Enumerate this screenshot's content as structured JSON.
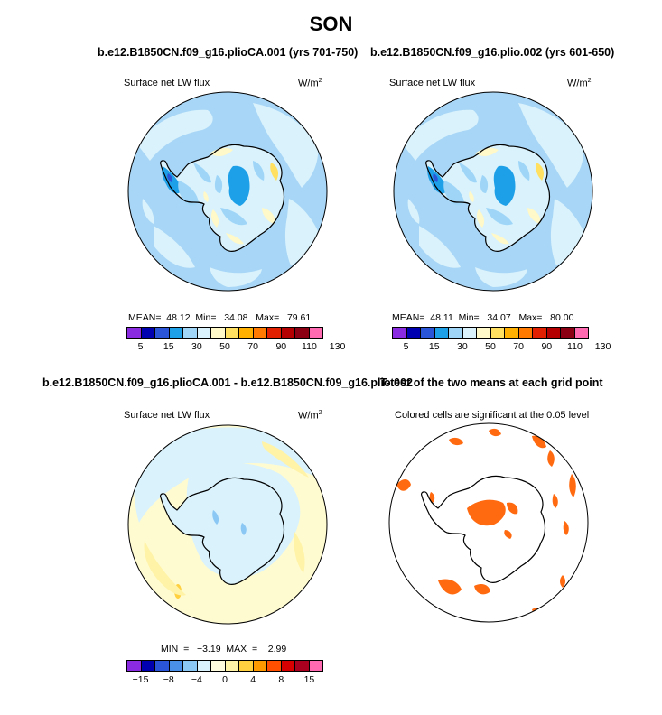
{
  "page_title": "SON",
  "panels": {
    "p1": {
      "title": "b.e12.B1850CN.f09_g16.plioCA.001 (yrs 701-750)",
      "variable": "Surface net LW flux",
      "units": "W/m",
      "units_exp": "2",
      "stats": "MEAN=  48.12  Min=   34.08   Max=   79.61",
      "colorbar_labels": [
        "5",
        "15",
        "30",
        "50",
        "70",
        "90",
        "110",
        "130"
      ]
    },
    "p2": {
      "title": "b.e12.B1850CN.f09_g16.plio.002 (yrs 601-650)",
      "variable": "Surface net LW flux",
      "units": "W/m",
      "units_exp": "2",
      "stats": "MEAN=  48.11  Min=   34.07   Max=   80.00",
      "colorbar_labels": [
        "5",
        "15",
        "30",
        "50",
        "70",
        "90",
        "110",
        "130"
      ]
    },
    "p3": {
      "title": "b.e12.B1850CN.f09_g16.plioCA.001 - b.e12.B1850CN.f09_g16.plio.002",
      "variable": "Surface net LW flux",
      "units": "W/m",
      "units_exp": "2",
      "stats": "MIN  =   −3.19  MAX  =    2.99",
      "colorbar_labels": [
        "−15",
        "−8",
        "−4",
        "0",
        "4",
        "8",
        "15"
      ]
    },
    "p4": {
      "title": "T-test of the two means at each grid point",
      "subtitle": "Colored cells are significant at the 0.05 level"
    }
  },
  "colors": {
    "abs_palette": [
      "#8a2be2",
      "#0000b0",
      "#2b55d8",
      "#1ea0e8",
      "#9fd6f8",
      "#d9f2fc",
      "#fff8c8",
      "#ffe060",
      "#ffb000",
      "#ff7a00",
      "#e02000",
      "#b40000",
      "#8c0014",
      "#ff6ab0"
    ],
    "diff_palette": [
      "#8a2be2",
      "#0000b0",
      "#2b55d8",
      "#4a90e8",
      "#8cc8f4",
      "#d9f2fc",
      "#fffce0",
      "#fff3a8",
      "#ffd040",
      "#ff9a00",
      "#ff5000",
      "#d80000",
      "#a8001e",
      "#ff6ab0"
    ],
    "ocean_base": "#a8d6f6",
    "diff_base": "#fffbd0",
    "sig_color": "#ff6a10"
  },
  "chart_data": [
    {
      "type": "heatmap",
      "projection": "south-polar-stereographic",
      "title": "b.e12.B1850CN.f09_g16.plioCA.001 (yrs 701-750)",
      "field": "Surface net LW flux",
      "units": "W/m2",
      "mean": 48.12,
      "min": 34.08,
      "max": 79.61,
      "contour_levels": [
        5,
        10,
        15,
        20,
        25,
        30,
        40,
        50,
        60,
        70,
        80,
        90,
        100,
        110,
        120,
        130
      ]
    },
    {
      "type": "heatmap",
      "projection": "south-polar-stereographic",
      "title": "b.e12.B1850CN.f09_g16.plio.002 (yrs 601-650)",
      "field": "Surface net LW flux",
      "units": "W/m2",
      "mean": 48.11,
      "min": 34.07,
      "max": 80.0,
      "contour_levels": [
        5,
        10,
        15,
        20,
        25,
        30,
        40,
        50,
        60,
        70,
        80,
        90,
        100,
        110,
        120,
        130
      ]
    },
    {
      "type": "heatmap",
      "projection": "south-polar-stereographic",
      "title": "b.e12.B1850CN.f09_g16.plioCA.001 - b.e12.B1850CN.f09_g16.plio.002",
      "field": "Surface net LW flux",
      "units": "W/m2",
      "min": -3.19,
      "max": 2.99,
      "contour_levels": [
        -15,
        -10,
        -8,
        -6,
        -4,
        -2,
        0,
        2,
        4,
        6,
        8,
        10,
        15
      ]
    },
    {
      "type": "heatmap",
      "projection": "south-polar-stereographic",
      "title": "T-test of the two means at each grid point",
      "subtitle": "Colored cells are significant at the 0.05 level",
      "significance_level": 0.05
    }
  ]
}
